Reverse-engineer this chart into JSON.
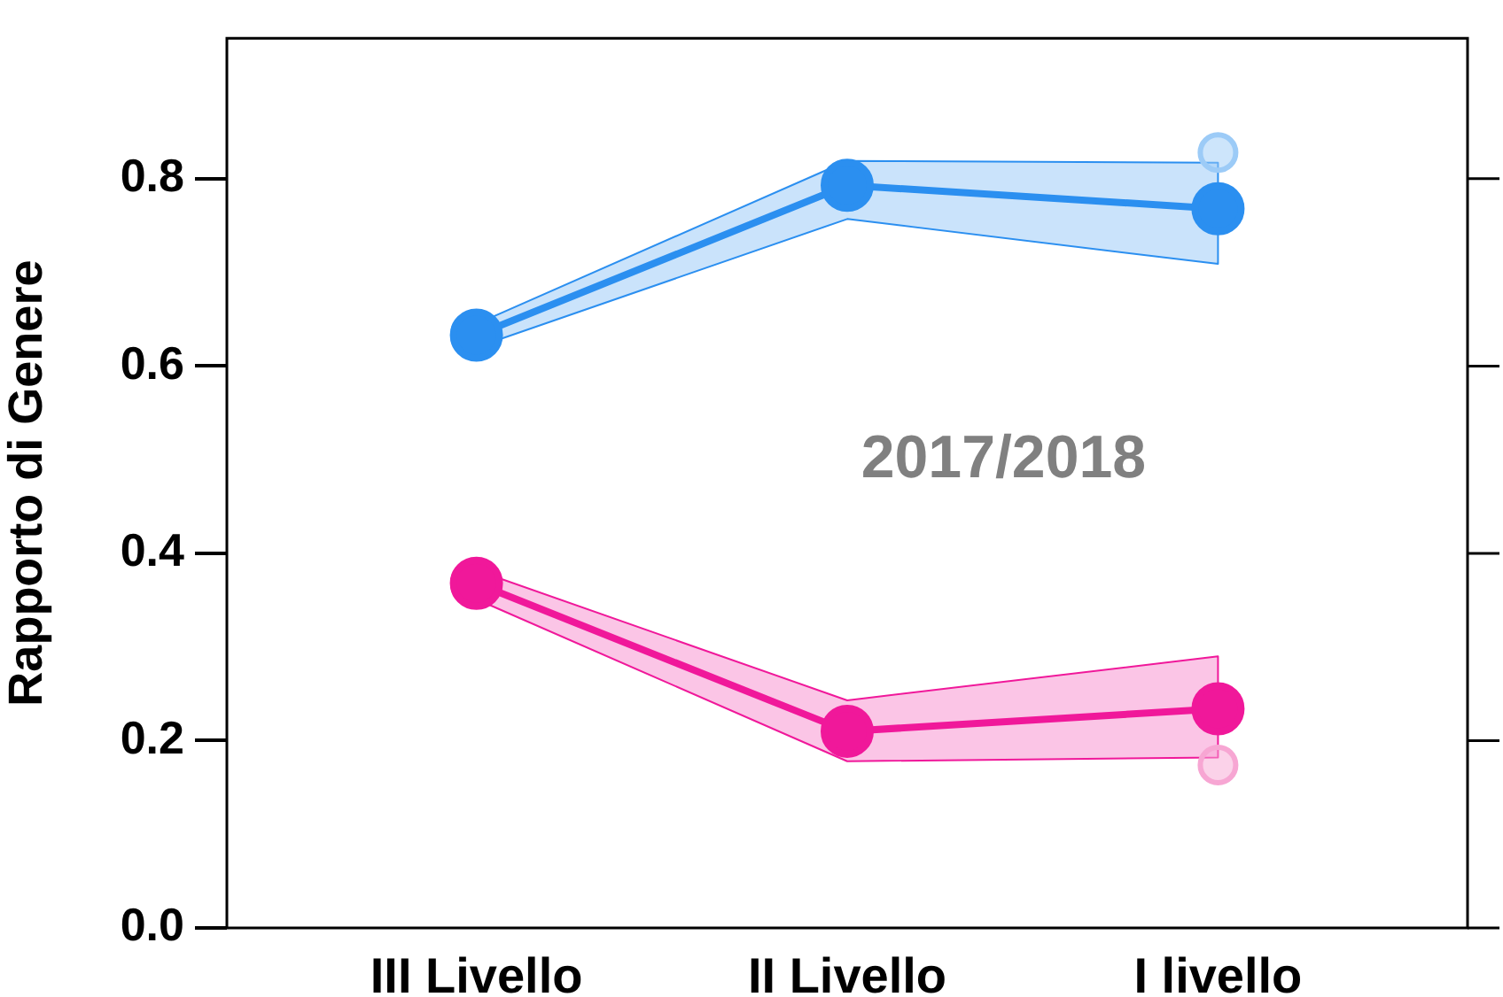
{
  "chart_data": {
    "type": "line",
    "ylabel": "Rapporto di Genere",
    "categories": [
      "III Livello",
      "II Livello",
      "I livello"
    ],
    "series": [
      {
        "color": "#2b8ff0",
        "values": [
          0.633,
          0.793,
          0.768
        ],
        "lower": [
          0.62,
          0.757,
          0.709
        ],
        "upper": [
          0.645,
          0.819,
          0.817
        ]
      },
      {
        "color": "#f0189a",
        "values": [
          0.368,
          0.21,
          0.234
        ],
        "lower": [
          0.351,
          0.178,
          0.182
        ],
        "upper": [
          0.382,
          0.243,
          0.29
        ]
      },
      {
        "type": "scatter",
        "color": "#9ccbf7",
        "values": [
          null,
          null,
          0.828
        ]
      },
      {
        "type": "scatter",
        "color": "#f7a6d3",
        "values": [
          null,
          null,
          0.174
        ]
      }
    ],
    "ylim": [
      0,
      0.95
    ],
    "yticks": [
      {
        "value": 0,
        "label": "0.0"
      },
      0.2,
      0.4,
      0.6,
      0.8
    ],
    "annotations": [
      "2017/2018"
    ],
    "grid": false,
    "legend": false,
    "marker": "circle",
    "line_style": "solid"
  }
}
